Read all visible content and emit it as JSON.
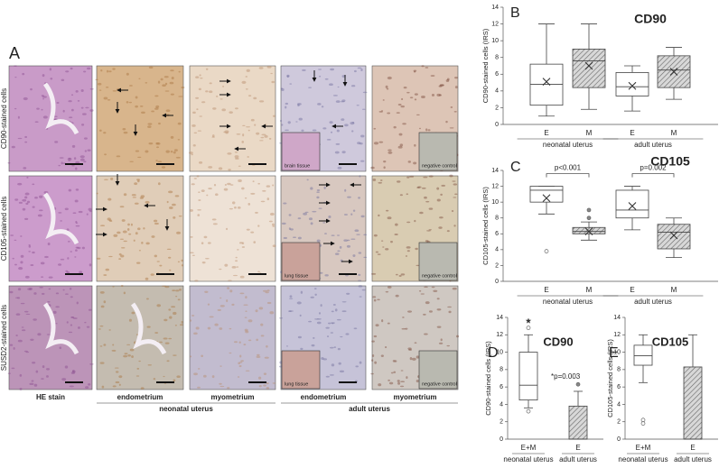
{
  "panel_a": {
    "label": "A",
    "row_labels": [
      "CD90-stained cells",
      "CD105-stained cells",
      "SUSD2-stained cells"
    ],
    "column_labels": [
      "HE stain",
      "endometrium",
      "myometrium",
      "endometrium",
      "myometrium"
    ],
    "group_labels": [
      "neonatal uterus",
      "adult uterus"
    ],
    "inset_labels": [
      [
        null,
        null,
        null,
        "brain tissue",
        "negative control"
      ],
      [
        null,
        null,
        null,
        "lung tissue",
        "negative control"
      ],
      [
        null,
        null,
        null,
        "lung tissue",
        "negative control"
      ]
    ]
  },
  "chart_data": [
    {
      "type": "box",
      "panel": "B",
      "title": "CD90",
      "ylabel": "CD90-stained cells (IRS)",
      "categories": [
        "E",
        "M",
        "E",
        "M"
      ],
      "groups": [
        "neonatal uterus",
        "adult uterus"
      ],
      "ylim": [
        0,
        14
      ],
      "yticks": [
        0,
        2,
        4,
        6,
        8,
        10,
        12,
        14
      ],
      "styles": [
        "plain",
        "hatched",
        "plain",
        "hatched"
      ],
      "boxes": [
        {
          "min": 1,
          "q1": 2.3,
          "median": 4.8,
          "q3": 7.2,
          "max": 12,
          "mean": 5.1,
          "outliers": []
        },
        {
          "min": 1.8,
          "q1": 4.4,
          "median": 7.6,
          "q3": 9,
          "max": 12,
          "mean": 7,
          "outliers": []
        },
        {
          "min": 1.6,
          "q1": 3.4,
          "median": 4.5,
          "q3": 6.2,
          "max": 7,
          "mean": 4.6,
          "outliers": []
        },
        {
          "min": 3,
          "q1": 4.4,
          "median": 6.5,
          "q3": 8.2,
          "max": 9.2,
          "mean": 6.3,
          "outliers": []
        }
      ],
      "annotations": []
    },
    {
      "type": "box",
      "panel": "C",
      "title": "CD105",
      "ylabel": "CD105-stained cells (IRS)",
      "categories": [
        "E",
        "M",
        "E",
        "M"
      ],
      "groups": [
        "neonatal uterus",
        "adult uterus"
      ],
      "ylim": [
        0,
        14
      ],
      "yticks": [
        0,
        2,
        4,
        6,
        8,
        10,
        12,
        14
      ],
      "styles": [
        "plain",
        "hatched",
        "plain",
        "hatched"
      ],
      "boxes": [
        {
          "min": 8.5,
          "q1": 10,
          "median": 11.5,
          "q3": 12,
          "max": 12,
          "mean": 10.5,
          "outliers": [
            3.8
          ]
        },
        {
          "min": 5.2,
          "q1": 6,
          "median": 6.3,
          "q3": 6.8,
          "max": 7.5,
          "mean": 6.3,
          "outliers": [
            8,
            9
          ]
        },
        {
          "min": 6.5,
          "q1": 8,
          "median": 9,
          "q3": 11.5,
          "max": 12,
          "mean": 9.5,
          "outliers": []
        },
        {
          "min": 3,
          "q1": 4.1,
          "median": 6.2,
          "q3": 7.2,
          "max": 8,
          "mean": 5.8,
          "outliers": []
        }
      ],
      "annotations": [
        "p<0.001",
        "p=0.002"
      ]
    },
    {
      "type": "box",
      "panel": "D",
      "title": "CD90",
      "ylabel": "CD90-stained cells (IRS)",
      "categories": [
        "E+M",
        "E"
      ],
      "groups": [
        "neonatal uterus",
        "adult uterus"
      ],
      "ylim": [
        0,
        14
      ],
      "yticks": [
        0,
        2,
        4,
        6,
        8,
        10,
        12,
        14
      ],
      "styles": [
        "plain",
        "hatched"
      ],
      "boxes": [
        {
          "min": 3.6,
          "q1": 4.5,
          "median": 6.2,
          "q3": 10,
          "max": 12,
          "outliers": [
            3.2,
            12.8
          ],
          "extremes": [
            13.6
          ]
        },
        {
          "min": 0,
          "q1": 0,
          "median": 0,
          "q3": 3.8,
          "max": 5.5,
          "outliers": [
            6.3
          ]
        }
      ],
      "annotations": [
        "*p=0.003"
      ]
    },
    {
      "type": "box",
      "panel": "E",
      "title": "CD105",
      "ylabel": "CD105-stained cells (IRS)",
      "categories": [
        "E+M",
        "E"
      ],
      "groups": [
        "neonatal uterus",
        "adult uterus"
      ],
      "ylim": [
        0,
        14
      ],
      "yticks": [
        0,
        2,
        4,
        6,
        8,
        10,
        12,
        14
      ],
      "styles": [
        "plain",
        "hatched"
      ],
      "boxes": [
        {
          "min": 6.5,
          "q1": 8.5,
          "median": 9.6,
          "q3": 10.8,
          "max": 12,
          "outliers": [
            2.2,
            1.8
          ]
        },
        {
          "min": 0,
          "q1": 0,
          "median": 0,
          "q3": 8.3,
          "max": 12,
          "outliers": []
        }
      ],
      "annotations": []
    }
  ]
}
